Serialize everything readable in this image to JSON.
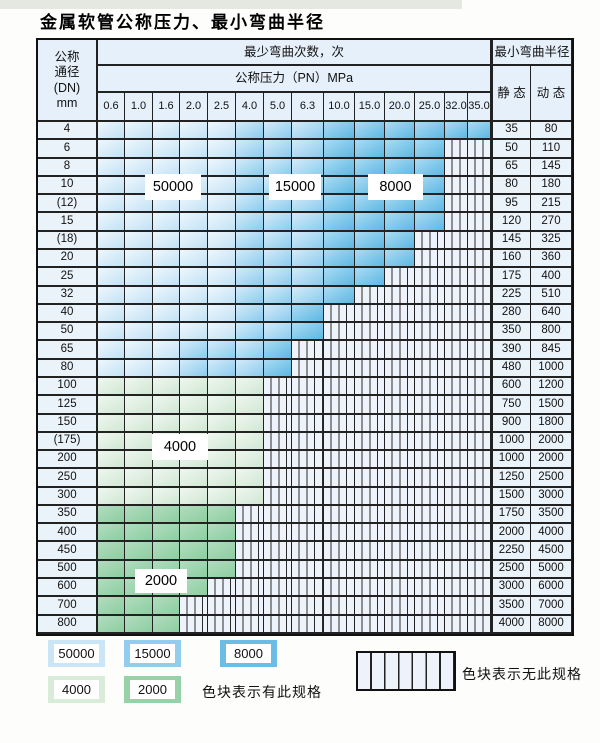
{
  "title": "金属软管公称压力、最小弯曲半径",
  "table": {
    "header": {
      "dn_label_lines": [
        "公称",
        "通径",
        "(DN)",
        "mm"
      ],
      "bend_times_label": "最少弯曲次数，次",
      "pressure_label": "公称压力（PN）MPa",
      "radius_label": "最小弯曲半径",
      "static_label": "静 态",
      "dynamic_label": "动 态",
      "pressure_columns": [
        "0.6",
        "1.0",
        "1.6",
        "2.0",
        "2.5",
        "4.0",
        "5.0",
        "6.3",
        "10.0",
        "15.0",
        "20.0",
        "25.0",
        "32.0",
        "35.0"
      ]
    },
    "rows": [
      {
        "dn": "4",
        "static": "35",
        "dynamic": "80",
        "spans": [
          [
            "50000",
            5
          ],
          [
            "15000",
            3
          ],
          [
            "8000",
            6
          ]
        ]
      },
      {
        "dn": "6",
        "static": "50",
        "dynamic": "110",
        "spans": [
          [
            "50000",
            5
          ],
          [
            "15000",
            3
          ],
          [
            "8000",
            4
          ]
        ]
      },
      {
        "dn": "8",
        "static": "65",
        "dynamic": "145",
        "spans": [
          [
            "50000",
            5
          ],
          [
            "15000",
            3
          ],
          [
            "8000",
            4
          ]
        ]
      },
      {
        "dn": "10",
        "static": "80",
        "dynamic": "180",
        "spans": [
          [
            "50000",
            5
          ],
          [
            "15000",
            3
          ],
          [
            "8000",
            4
          ]
        ]
      },
      {
        "dn": "(12)",
        "static": "95",
        "dynamic": "215",
        "spans": [
          [
            "50000",
            5
          ],
          [
            "15000",
            3
          ],
          [
            "8000",
            4
          ]
        ]
      },
      {
        "dn": "15",
        "static": "120",
        "dynamic": "270",
        "spans": [
          [
            "50000",
            5
          ],
          [
            "15000",
            3
          ],
          [
            "8000",
            4
          ]
        ]
      },
      {
        "dn": "(18)",
        "static": "145",
        "dynamic": "325",
        "spans": [
          [
            "50000",
            5
          ],
          [
            "15000",
            3
          ],
          [
            "8000",
            3
          ]
        ]
      },
      {
        "dn": "20",
        "static": "160",
        "dynamic": "360",
        "spans": [
          [
            "50000",
            5
          ],
          [
            "15000",
            3
          ],
          [
            "8000",
            3
          ]
        ]
      },
      {
        "dn": "25",
        "static": "175",
        "dynamic": "400",
        "spans": [
          [
            "50000",
            5
          ],
          [
            "15000",
            3
          ],
          [
            "8000",
            2
          ]
        ]
      },
      {
        "dn": "32",
        "static": "225",
        "dynamic": "510",
        "spans": [
          [
            "50000",
            5
          ],
          [
            "15000",
            3
          ],
          [
            "8000",
            1
          ]
        ]
      },
      {
        "dn": "40",
        "static": "280",
        "dynamic": "640",
        "spans": [
          [
            "50000",
            5
          ],
          [
            "15000",
            2
          ],
          [
            "8000",
            1
          ]
        ]
      },
      {
        "dn": "50",
        "static": "350",
        "dynamic": "800",
        "spans": [
          [
            "50000",
            5
          ],
          [
            "15000",
            2
          ],
          [
            "8000",
            1
          ]
        ]
      },
      {
        "dn": "65",
        "static": "390",
        "dynamic": "845",
        "spans": [
          [
            "50000",
            3
          ],
          [
            "15000",
            3
          ],
          [
            "8000",
            1
          ]
        ]
      },
      {
        "dn": "80",
        "static": "480",
        "dynamic": "1000",
        "spans": [
          [
            "50000",
            3
          ],
          [
            "15000",
            3
          ],
          [
            "8000",
            1
          ]
        ]
      },
      {
        "dn": "100",
        "static": "600",
        "dynamic": "1200",
        "spans": [
          [
            "4000",
            6
          ]
        ]
      },
      {
        "dn": "125",
        "static": "750",
        "dynamic": "1500",
        "spans": [
          [
            "4000",
            6
          ]
        ]
      },
      {
        "dn": "150",
        "static": "900",
        "dynamic": "1800",
        "spans": [
          [
            "4000",
            6
          ]
        ]
      },
      {
        "dn": "(175)",
        "static": "1000",
        "dynamic": "2000",
        "spans": [
          [
            "4000",
            6
          ]
        ]
      },
      {
        "dn": "200",
        "static": "1000",
        "dynamic": "2000",
        "spans": [
          [
            "4000",
            6
          ]
        ]
      },
      {
        "dn": "250",
        "static": "1250",
        "dynamic": "2500",
        "spans": [
          [
            "4000",
            6
          ]
        ]
      },
      {
        "dn": "300",
        "static": "1500",
        "dynamic": "3000",
        "spans": [
          [
            "4000",
            6
          ]
        ]
      },
      {
        "dn": "350",
        "static": "1750",
        "dynamic": "3500",
        "spans": [
          [
            "2000",
            5
          ]
        ]
      },
      {
        "dn": "400",
        "static": "2000",
        "dynamic": "4000",
        "spans": [
          [
            "2000",
            5
          ]
        ]
      },
      {
        "dn": "450",
        "static": "2250",
        "dynamic": "4500",
        "spans": [
          [
            "2000",
            5
          ]
        ]
      },
      {
        "dn": "500",
        "static": "2500",
        "dynamic": "5000",
        "spans": [
          [
            "2000",
            5
          ]
        ]
      },
      {
        "dn": "600",
        "static": "3000",
        "dynamic": "6000",
        "spans": [
          [
            "2000",
            4
          ]
        ]
      },
      {
        "dn": "700",
        "static": "3500",
        "dynamic": "7000",
        "spans": [
          [
            "2000",
            3
          ]
        ]
      },
      {
        "dn": "800",
        "static": "4000",
        "dynamic": "8000",
        "spans": [
          [
            "2000",
            3
          ]
        ]
      }
    ]
  },
  "overlays": {
    "v50000": "50000",
    "v15000": "15000",
    "v8000": "8000",
    "v4000": "4000",
    "v2000": "2000"
  },
  "legend": {
    "swatch_50000": "50000",
    "swatch_15000": "15000",
    "swatch_8000": "8000",
    "swatch_4000": "4000",
    "swatch_2000": "2000",
    "has_spec_text": "色块表示有此规格",
    "no_spec_text": "色块表示无此规格"
  },
  "colors": {
    "c50000": "#c9e5f6",
    "c15000": "#92cdee",
    "c8000": "#6cbde6",
    "c4000": "#d9ecd9",
    "c2000": "#96d1a7",
    "hatch_bg": "#eef3fb",
    "header_bg": "#e6f0fa",
    "label_col_bg": "#ebf3fa",
    "grid_line": "#222222"
  }
}
